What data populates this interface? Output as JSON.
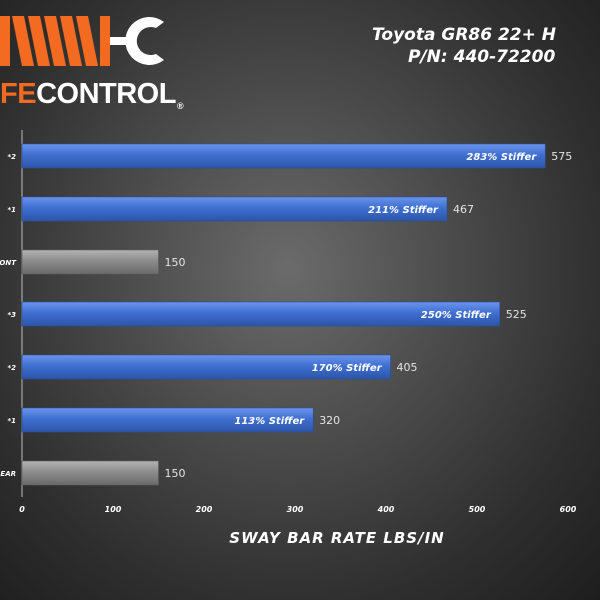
{
  "brand": {
    "name_prefix": "FE",
    "name_main": "CONTROL",
    "registered": "®",
    "accent_color": "#f26b21"
  },
  "header": {
    "title": "Toyota GR86 22+ H",
    "part_number": "P/N: 440-72200"
  },
  "chart_data": {
    "type": "bar",
    "orientation": "horizontal",
    "xlabel": "SWAY BAR RATE LBS/IN",
    "xlim": [
      0,
      600
    ],
    "x_ticks": [
      "0",
      "100",
      "200",
      "300",
      "400",
      "500",
      "600"
    ],
    "categories": [
      "*2",
      "*1",
      "ONT",
      "*3",
      "*2",
      "*1",
      "EAR"
    ],
    "values": [
      575,
      467,
      150,
      525,
      405,
      320,
      150
    ],
    "value_labels": [
      "575",
      "467",
      "150",
      "525",
      "405",
      "320",
      "150"
    ],
    "annotations": [
      "283% Stiffer",
      "211% Stiffer",
      "",
      "250% Stiffer",
      "170% Stiffer",
      "113% Stiffer",
      ""
    ],
    "bar_colors": [
      "#3f6fd1",
      "#3f6fd1",
      "#8c8c8c",
      "#3f6fd1",
      "#3f6fd1",
      "#3f6fd1",
      "#8c8c8c"
    ],
    "grid": false,
    "legend": "none"
  }
}
